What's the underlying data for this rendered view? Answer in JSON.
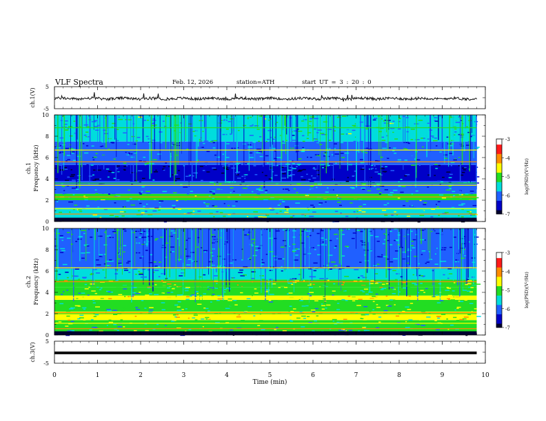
{
  "header": {
    "title": "VLF Spectra",
    "date": "Feb. 12, 2026",
    "station": "station=ATH",
    "start_ut": "start UT =  3 : 20 : 0"
  },
  "colors": {
    "trace": "#111111",
    "axis": "#000000",
    "background": "#ffffff",
    "colormap": [
      "#ffffff",
      "#ff1a1a",
      "#ff8c00",
      "#ffff00",
      "#22dd22",
      "#00dddd",
      "#2060ff",
      "#0000c8",
      "#000030"
    ]
  },
  "chart_data": [
    {
      "type": "line",
      "id": "ch1-waveform",
      "ylabel": "ch.1(V)",
      "ylim": [
        -5,
        5
      ],
      "ytick_labels": [
        "5",
        "-5"
      ],
      "xlim": [
        0,
        10
      ],
      "series": [
        {
          "name": "ch.1",
          "description_value": "noisy baseline near -0.4 V with spikes",
          "baseline": -0.4,
          "noise": 0.6,
          "end_x": 9.8
        }
      ]
    },
    {
      "type": "heatmap",
      "id": "ch1-spectrogram",
      "ylabel_top": "ch.1",
      "ylabel": "Frequency  (kHz)",
      "ylim": [
        0,
        10
      ],
      "ytick_labels": [
        "0",
        "2",
        "4",
        "6",
        "8",
        "10"
      ],
      "xlim": [
        0,
        10
      ],
      "end_x": 9.8,
      "colorbar": {
        "label": "log(PSD)(V²/Hz)",
        "range": [
          -7,
          -3
        ],
        "tick_labels": [
          "-3",
          "-4",
          "-5",
          "-6",
          "-7"
        ]
      },
      "bands_khz": [
        {
          "f0": 0.0,
          "f1": 0.35,
          "level": -7.0
        },
        {
          "f0": 0.35,
          "f1": 1.3,
          "level": -5.3
        },
        {
          "f0": 1.3,
          "f1": 2.0,
          "level": -5.9
        },
        {
          "f0": 2.0,
          "f1": 2.6,
          "level": -5.0
        },
        {
          "f0": 2.6,
          "f1": 3.8,
          "level": -5.8
        },
        {
          "f0": 3.8,
          "f1": 5.3,
          "level": -6.4
        },
        {
          "f0": 5.3,
          "f1": 7.5,
          "level": -5.9
        },
        {
          "f0": 7.5,
          "f1": 10.0,
          "level": -5.5
        }
      ],
      "lines_khz": [
        0.7,
        1.2,
        2.1,
        2.3,
        3.4,
        3.6,
        5.6,
        6.7,
        8.8
      ]
    },
    {
      "type": "heatmap",
      "id": "ch2-spectrogram",
      "ylabel_top": "ch.2",
      "ylabel": "Frequency  (kHz)",
      "ylim": [
        0,
        10
      ],
      "ytick_labels": [
        "0",
        "2",
        "4",
        "6",
        "8",
        "10"
      ],
      "xlim": [
        0,
        10
      ],
      "end_x": 9.8,
      "colorbar": {
        "label": "log(PSD)(V²/Hz)",
        "range": [
          -7,
          -3
        ],
        "tick_labels": [
          "-3",
          "-4",
          "-5",
          "-6",
          "-7"
        ]
      },
      "bands_khz": [
        {
          "f0": 0.0,
          "f1": 0.3,
          "level": -7.0
        },
        {
          "f0": 0.3,
          "f1": 1.4,
          "level": -5.2
        },
        {
          "f0": 1.4,
          "f1": 2.2,
          "level": -4.7
        },
        {
          "f0": 2.2,
          "f1": 3.3,
          "level": -5.1
        },
        {
          "f0": 3.3,
          "f1": 3.7,
          "level": -4.6
        },
        {
          "f0": 3.7,
          "f1": 4.5,
          "level": -5.2
        },
        {
          "f0": 4.5,
          "f1": 5.2,
          "level": -4.8
        },
        {
          "f0": 5.2,
          "f1": 6.2,
          "level": -5.7
        },
        {
          "f0": 6.2,
          "f1": 10.0,
          "level": -5.9
        }
      ],
      "lines_khz": [
        0.6,
        1.1,
        2.0,
        2.1,
        3.5,
        4.6,
        5.0,
        6.3
      ]
    },
    {
      "type": "line",
      "id": "ch3-waveform",
      "ylabel": "ch.3(V)",
      "ylim": [
        -5,
        5
      ],
      "ytick_labels": [
        "5",
        "-5"
      ],
      "xlim": [
        0,
        10
      ],
      "series": [
        {
          "name": "ch.3",
          "baseline": -0.3,
          "noise": 0.0,
          "end_x": 9.8
        }
      ]
    }
  ],
  "xaxis": {
    "label": "Time  (min)",
    "tick_labels": [
      "0",
      "1",
      "2",
      "3",
      "4",
      "5",
      "6",
      "7",
      "8",
      "9",
      "10"
    ]
  }
}
